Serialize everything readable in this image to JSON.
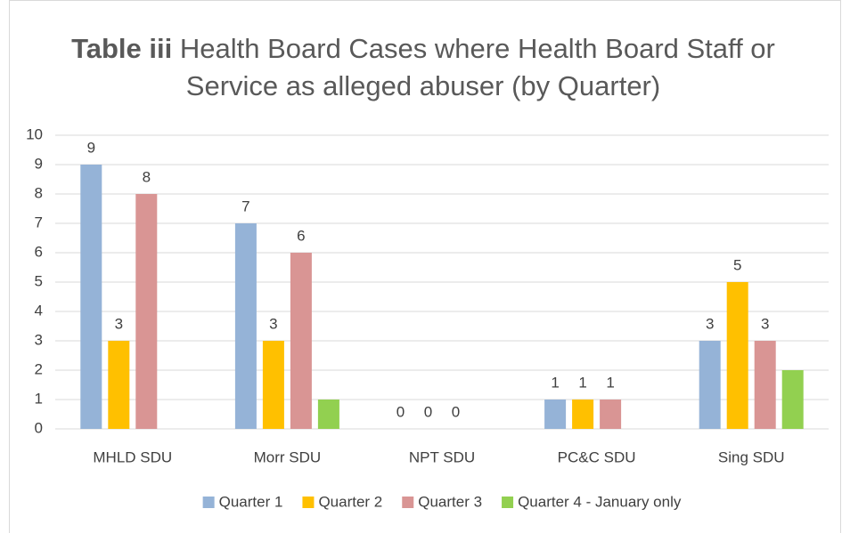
{
  "chart_data": {
    "type": "bar",
    "title_bold": "Table iii",
    "title": "Health Board Cases where Health Board Staff or Service  as alleged abuser (by Quarter)",
    "categories": [
      "MHLD SDU",
      "Morr SDU",
      "NPT SDU",
      "PC&C SDU",
      "Sing SDU"
    ],
    "series": [
      {
        "name": "Quarter 1",
        "color": "#95b3d7",
        "values": [
          9,
          7,
          0,
          1,
          3
        ],
        "data_labels": true
      },
      {
        "name": "Quarter 2",
        "color": "#ffc000",
        "values": [
          3,
          3,
          0,
          1,
          5
        ],
        "data_labels": true
      },
      {
        "name": "Quarter 3",
        "color": "#d99594",
        "values": [
          8,
          6,
          0,
          1,
          3
        ],
        "data_labels": true
      },
      {
        "name": "Quarter 4 - January only",
        "color": "#92d050",
        "values": [
          null,
          1,
          null,
          null,
          2
        ],
        "data_labels": false
      }
    ],
    "ylim": [
      0,
      10
    ],
    "yticks": [
      0,
      1,
      2,
      3,
      4,
      5,
      6,
      7,
      8,
      9,
      10
    ],
    "grid": true,
    "legend": "bottom"
  }
}
